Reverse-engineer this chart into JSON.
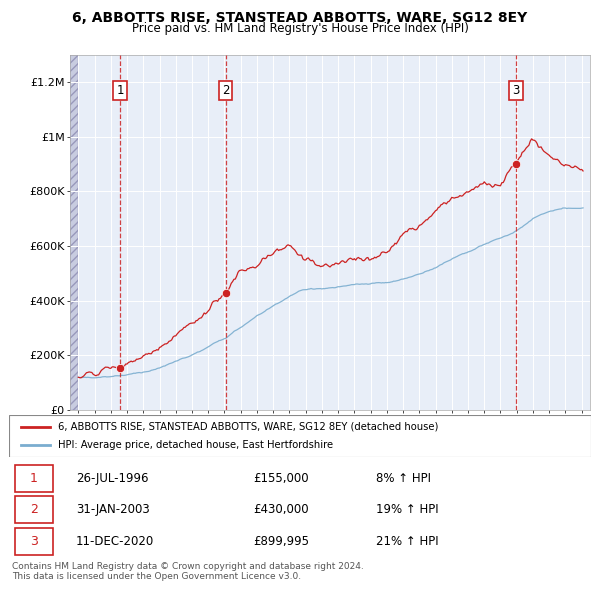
{
  "title": "6, ABBOTTS RISE, STANSTEAD ABBOTTS, WARE, SG12 8EY",
  "subtitle": "Price paid vs. HM Land Registry's House Price Index (HPI)",
  "xlim": [
    1993.5,
    2025.5
  ],
  "ylim": [
    0,
    1300000
  ],
  "yticks": [
    0,
    200000,
    400000,
    600000,
    800000,
    1000000,
    1200000
  ],
  "ytick_labels": [
    "£0",
    "£200K",
    "£400K",
    "£600K",
    "£800K",
    "£1M",
    "£1.2M"
  ],
  "xticks": [
    1994,
    1995,
    1996,
    1997,
    1998,
    1999,
    2000,
    2001,
    2002,
    2003,
    2004,
    2005,
    2006,
    2007,
    2008,
    2009,
    2010,
    2011,
    2012,
    2013,
    2014,
    2015,
    2016,
    2017,
    2018,
    2019,
    2020,
    2021,
    2022,
    2023,
    2024,
    2025
  ],
  "hpi_color": "#7aadcf",
  "price_color": "#cc2222",
  "sale_points": [
    {
      "year": 1996.57,
      "price": 155000,
      "label": "1"
    },
    {
      "year": 2003.08,
      "price": 430000,
      "label": "2"
    },
    {
      "year": 2020.95,
      "price": 899995,
      "label": "3"
    }
  ],
  "vline_color": "#cc2222",
  "legend_entries": [
    "6, ABBOTTS RISE, STANSTEAD ABBOTTS, WARE, SG12 8EY (detached house)",
    "HPI: Average price, detached house, East Hertfordshire"
  ],
  "table_rows": [
    {
      "num": "1",
      "date": "26-JUL-1996",
      "price": "£155,000",
      "change": "8% ↑ HPI"
    },
    {
      "num": "2",
      "date": "31-JAN-2003",
      "price": "£430,000",
      "change": "19% ↑ HPI"
    },
    {
      "num": "3",
      "date": "11-DEC-2020",
      "price": "£899,995",
      "change": "21% ↑ HPI"
    }
  ],
  "footer": "Contains HM Land Registry data © Crown copyright and database right 2024.\nThis data is licensed under the Open Government Licence v3.0.",
  "plot_bg": "#e8eef8"
}
